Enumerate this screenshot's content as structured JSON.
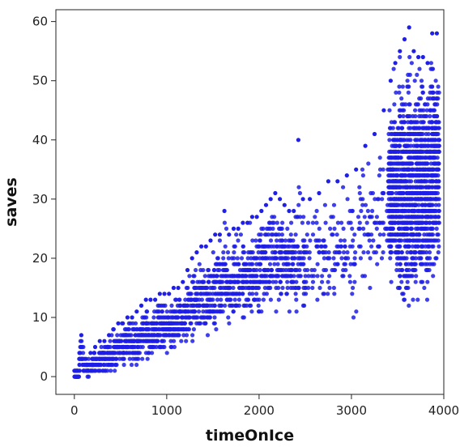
{
  "chart_data": {
    "type": "scatter",
    "xlabel": "timeOnIce",
    "ylabel": "saves",
    "xlim": [
      -200,
      4000
    ],
    "ylim": [
      -3,
      62
    ],
    "xticks": [
      "0",
      "1000",
      "2000",
      "3000",
      "4000"
    ],
    "yticks": [
      "0",
      "10",
      "20",
      "30",
      "40",
      "50",
      "60"
    ],
    "grid": false,
    "marker_color": "#1f1fe6",
    "points_description_series": [
      {
        "x": [
          0,
          50,
          100,
          150,
          200,
          250,
          300,
          350,
          400,
          450,
          500,
          550,
          600,
          650,
          700,
          750,
          800,
          850,
          900,
          950,
          1000,
          1050,
          1100,
          1150,
          1200,
          1250,
          1300,
          1350,
          1400,
          1450,
          1500,
          1550,
          1600,
          1650,
          1700,
          1750,
          1800,
          1850,
          1900,
          1950,
          2000,
          2050,
          2100,
          2150,
          2200,
          2250,
          2300,
          2350,
          2400,
          2450,
          2500,
          2600,
          2700,
          2800,
          2900,
          3000,
          3100,
          3200,
          3300,
          3400,
          3450,
          3500,
          3550,
          3600,
          3650,
          3700,
          3750,
          3800,
          3850,
          3900
        ],
        "y_min": [
          0,
          0,
          0,
          0,
          0,
          0,
          0,
          0,
          0,
          1,
          1,
          1,
          1,
          1,
          2,
          2,
          2,
          2,
          2,
          3,
          3,
          3,
          4,
          4,
          4,
          4,
          5,
          5,
          5,
          6,
          6,
          6,
          7,
          7,
          7,
          7,
          8,
          8,
          8,
          8,
          9,
          9,
          9,
          10,
          10,
          10,
          10,
          10,
          3,
          8,
          8,
          9,
          9,
          10,
          10,
          5,
          10,
          11,
          12,
          13,
          12,
          8,
          7,
          7,
          8,
          9,
          10,
          11,
          12,
          13
        ],
        "y_max": [
          1,
          7,
          3,
          4,
          5,
          6,
          6,
          7,
          8,
          9,
          9,
          10,
          10,
          11,
          12,
          13,
          13,
          13,
          14,
          14,
          14,
          15,
          15,
          16,
          18,
          20,
          21,
          22,
          22,
          23,
          24,
          24,
          28,
          24,
          25,
          25,
          26,
          26,
          27,
          27,
          28,
          29,
          30,
          31,
          30,
          29,
          28,
          28,
          40,
          30,
          30,
          31,
          33,
          33,
          34,
          35,
          39,
          41,
          45,
          50,
          53,
          55,
          57,
          59,
          55,
          54,
          54,
          53,
          58,
          58
        ]
      }
    ]
  }
}
